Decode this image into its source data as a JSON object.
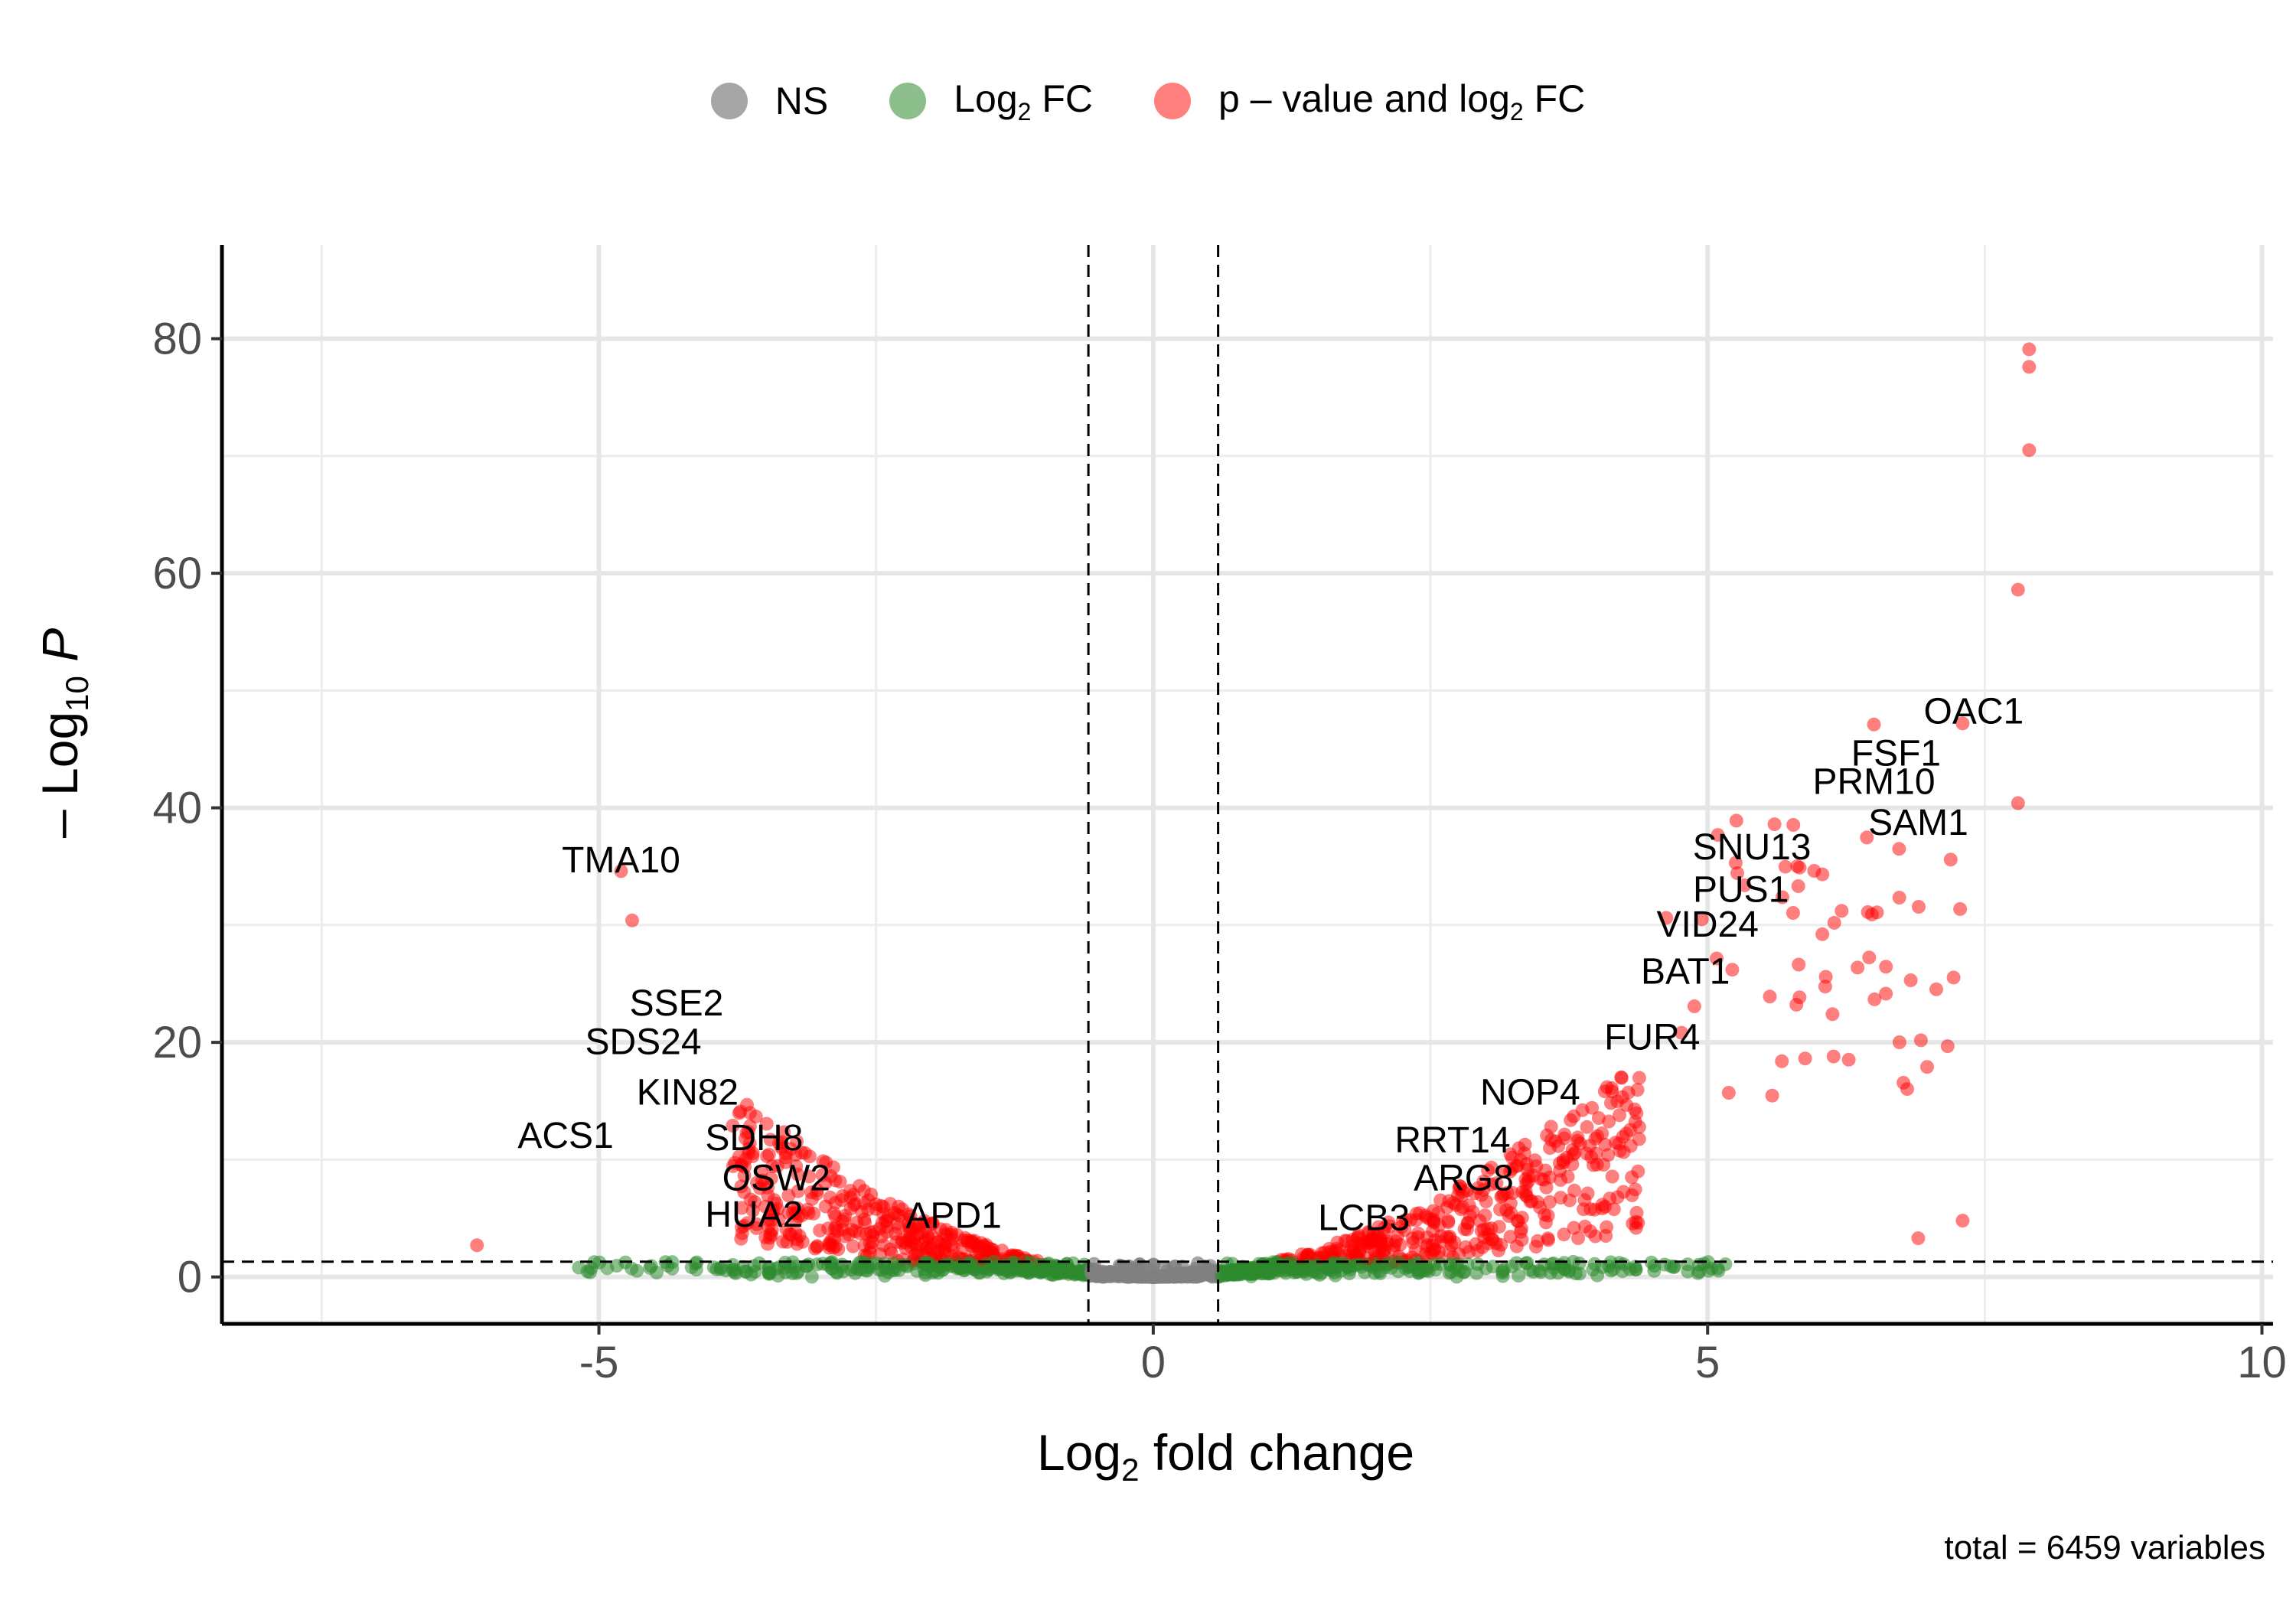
{
  "legend": {
    "ns_label": "NS",
    "log2fc_label_main": "Log",
    "log2fc_label_sub": "2",
    "log2fc_label_tail": " FC",
    "both_label_main": "p – value and log",
    "both_label_sub": "2",
    "both_label_tail": " FC",
    "colors": {
      "ns": "#808080",
      "log2fc": "#2e8b2e",
      "both": "#ff0000"
    }
  },
  "axes": {
    "xlabel_main": "Log",
    "xlabel_sub": "2",
    "xlabel_tail": " fold change",
    "ylabel_pre": "– Log",
    "ylabel_sub": "10",
    "ylabel_italic": "P"
  },
  "caption": "total = 6459 variables",
  "chart_data": {
    "type": "scatter",
    "xlim": [
      -8.4,
      10.1
    ],
    "ylim": [
      -4,
      88
    ],
    "x_ticks": [
      -5,
      0,
      5,
      10
    ],
    "x_tick_labels": [
      "-5",
      "0",
      "5",
      "10"
    ],
    "y_ticks": [
      0,
      20,
      40,
      60,
      80
    ],
    "y_tick_labels": [
      "0",
      "20",
      "40",
      "60",
      "80"
    ],
    "grid": true,
    "legend_position": "top",
    "thresholds": {
      "fc_cutoff": 0.585,
      "p_cutoff_log10": 1.3
    },
    "labels": [
      {
        "text": "TMA10",
        "x": -4.8,
        "y": 34.5
      },
      {
        "text": "SSE2",
        "x": -4.3,
        "y": 22.3
      },
      {
        "text": "SDS24",
        "x": -4.6,
        "y": 19.0
      },
      {
        "text": "KIN82",
        "x": -4.2,
        "y": 14.7
      },
      {
        "text": "ACS1",
        "x": -5.3,
        "y": 11.0
      },
      {
        "text": "SDH8",
        "x": -3.6,
        "y": 10.8
      },
      {
        "text": "OSW2",
        "x": -3.4,
        "y": 7.4
      },
      {
        "text": "HUA2",
        "x": -3.6,
        "y": 4.3
      },
      {
        "text": "APD1",
        "x": -1.8,
        "y": 4.2
      },
      {
        "text": "LCB3",
        "x": 1.9,
        "y": 4.0
      },
      {
        "text": "ARG8",
        "x": 2.8,
        "y": 7.4
      },
      {
        "text": "RRT14",
        "x": 2.7,
        "y": 10.6
      },
      {
        "text": "NOP4",
        "x": 3.4,
        "y": 14.7
      },
      {
        "text": "FUR4",
        "x": 4.5,
        "y": 19.4
      },
      {
        "text": "BAT1",
        "x": 4.8,
        "y": 25.0
      },
      {
        "text": "VID24",
        "x": 5.0,
        "y": 29.0
      },
      {
        "text": "PUS1",
        "x": 5.3,
        "y": 32.0
      },
      {
        "text": "SNU13",
        "x": 5.4,
        "y": 35.6
      },
      {
        "text": "SAM1",
        "x": 6.9,
        "y": 37.7
      },
      {
        "text": "PRM10",
        "x": 6.5,
        "y": 41.2
      },
      {
        "text": "FSF1",
        "x": 6.7,
        "y": 43.6
      },
      {
        "text": "OAC1",
        "x": 7.4,
        "y": 47.2
      }
    ],
    "notable_points": [
      {
        "x": 7.9,
        "y": 79.1
      },
      {
        "x": 7.9,
        "y": 77.6
      },
      {
        "x": 7.9,
        "y": 70.5
      },
      {
        "x": 7.8,
        "y": 58.6
      },
      {
        "x": 7.8,
        "y": 40.4
      },
      {
        "x": 7.3,
        "y": 47.2
      },
      {
        "x": 6.5,
        "y": 47.1
      },
      {
        "x": -4.8,
        "y": 34.6
      },
      {
        "x": -4.7,
        "y": 30.4
      },
      {
        "x": -6.1,
        "y": 2.7
      },
      {
        "x": 7.3,
        "y": 4.8
      },
      {
        "x": 6.9,
        "y": 3.3
      }
    ]
  }
}
